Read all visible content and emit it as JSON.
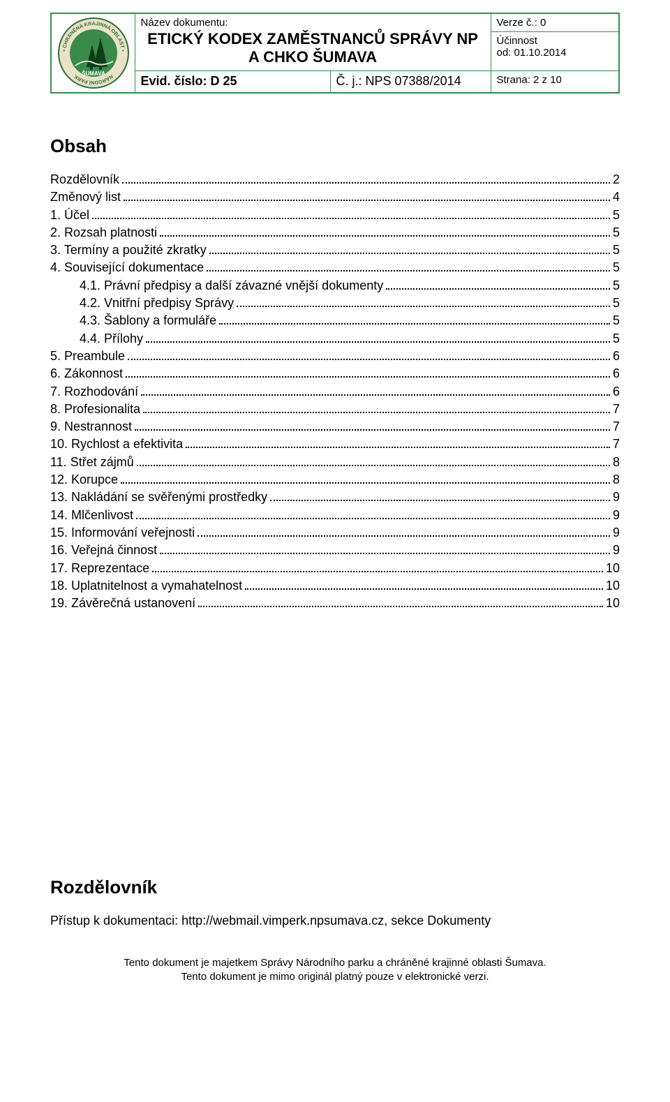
{
  "header": {
    "doc_label": "Název dokumentu:",
    "doc_title_line1": "ETICKÝ KODEX ZAMĚSTNANCŮ SPRÁVY NP",
    "doc_title_line2": "A CHKO ŠUMAVA",
    "version_label": "Verze č.: 0",
    "effective_label": "Účinnost",
    "effective_from": "od: 01.10.2014",
    "evid": "Evid. číslo: D 25",
    "cj": "Č. j.: NPS 07388/2014",
    "strana": "Strana: 2 z 10"
  },
  "logo": {
    "outer_text_top": "CHRÁNĚNÁ KRAJINNÁ OBLAST",
    "outer_text_left": "NÁRODNÍ PARK",
    "inner_text": "ŠUMAVA",
    "ring_bg": "#e9e2c9",
    "ring_text": "#2f6f3a",
    "center_bg": "#3a8a4a",
    "tree_color": "#0d3d1a"
  },
  "sections": {
    "obsah": "Obsah",
    "rozdelovnik": "Rozdělovník"
  },
  "toc": [
    {
      "label": "Rozdělovník",
      "page": "2",
      "indent": 0
    },
    {
      "label": "Změnový list",
      "page": "4",
      "indent": 0
    },
    {
      "label": "1.   Účel",
      "page": "5",
      "indent": 0
    },
    {
      "label": "2.   Rozsah platnosti",
      "page": "5",
      "indent": 0
    },
    {
      "label": "3.   Termíny a použité zkratky",
      "page": "5",
      "indent": 0
    },
    {
      "label": "4.   Související dokumentace",
      "page": "5",
      "indent": 0
    },
    {
      "label": "4.1.   Právní předpisy a další závazné vnější dokumenty",
      "page": "5",
      "indent": 1
    },
    {
      "label": "4.2.   Vnitřní předpisy Správy",
      "page": "5",
      "indent": 1
    },
    {
      "label": "4.3.   Šablony a formuláře",
      "page": "5",
      "indent": 1
    },
    {
      "label": "4.4.   Přílohy",
      "page": "5",
      "indent": 1
    },
    {
      "label": "5.   Preambule",
      "page": "6",
      "indent": 0
    },
    {
      "label": "6.   Zákonnost",
      "page": "6",
      "indent": 0
    },
    {
      "label": "7.   Rozhodování",
      "page": "6",
      "indent": 0
    },
    {
      "label": "8.   Profesionalita",
      "page": "7",
      "indent": 0
    },
    {
      "label": "9.   Nestrannost",
      "page": "7",
      "indent": 0
    },
    {
      "label": "10.   Rychlost a efektivita",
      "page": "7",
      "indent": 0
    },
    {
      "label": "11.   Střet zájmů",
      "page": "8",
      "indent": 0
    },
    {
      "label": "12.   Korupce",
      "page": "8",
      "indent": 0
    },
    {
      "label": "13.   Nakládání se svěřenými prostředky",
      "page": "9",
      "indent": 0
    },
    {
      "label": "14.   Mlčenlivost",
      "page": "9",
      "indent": 0
    },
    {
      "label": "15.   Informování veřejnosti",
      "page": "9",
      "indent": 0
    },
    {
      "label": "16.   Veřejná činnost",
      "page": "9",
      "indent": 0
    },
    {
      "label": "17.   Reprezentace",
      "page": "10",
      "indent": 0
    },
    {
      "label": "18.   Uplatnitelnost a vymahatelnost",
      "page": "10",
      "indent": 0
    },
    {
      "label": "19.   Závěrečná ustanovení",
      "page": "10",
      "indent": 0
    }
  ],
  "access": "Přístup k dokumentaci: http://webmail.vimperk.npsumava.cz, sekce Dokumenty",
  "disclaimer": {
    "line1": "Tento dokument je majetkem Správy Národního parku a chráněné krajinné oblasti Šumava.",
    "line2": "Tento dokument je mimo originál platný pouze v elektronické verzi."
  },
  "colors": {
    "border": "#30904b",
    "text": "#000000",
    "background": "#ffffff"
  }
}
